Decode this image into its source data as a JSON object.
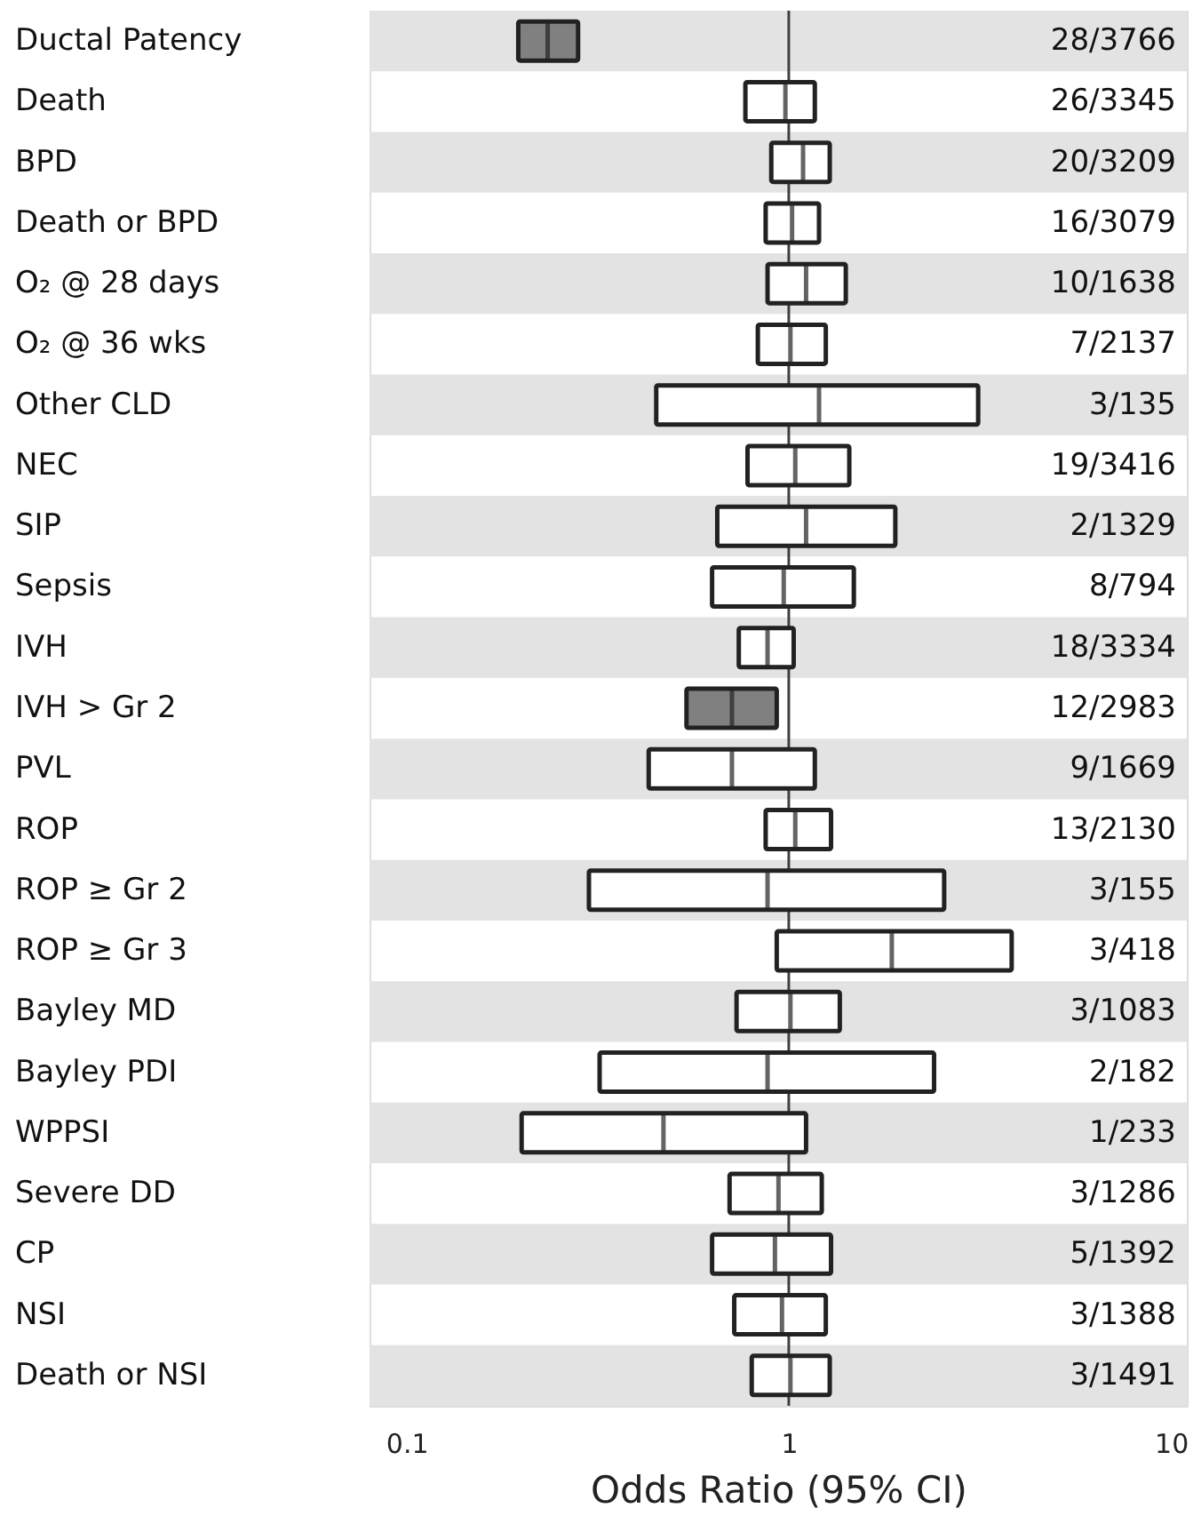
{
  "chart_data": {
    "type": "box",
    "orientation": "horizontal",
    "xlabel": "Odds Ratio (95% CI)",
    "log": "x",
    "xlim": [
      0.08,
      11
    ],
    "xticks": [
      0.1,
      1,
      10
    ],
    "grid": false,
    "categories": [
      "Ductal Patency",
      "Death",
      "BPD",
      "Death or BPD",
      "O₂ @ 28 days",
      "O₂ @ 36 wks",
      "Other CLD",
      "NEC",
      "SIP",
      "Sepsis",
      "IVH",
      "IVH > Gr 2",
      "PVL",
      "ROP",
      "ROP ≥ Gr 2",
      "ROP ≥ Gr 3",
      "Bayley MD",
      "Bayley PDI",
      "WPPSI",
      "Severe DD",
      "CP",
      "NSI",
      "Death or NSI"
    ],
    "boxes": [
      {
        "low": 0.196,
        "q1": 0.196,
        "median": 0.234,
        "q3": 0.281,
        "high": 0.281
      },
      {
        "low": 0.77,
        "q1": 0.77,
        "median": 0.98,
        "q3": 1.17,
        "high": 1.17
      },
      {
        "low": 0.9,
        "q1": 0.9,
        "median": 1.09,
        "q3": 1.28,
        "high": 1.28
      },
      {
        "low": 0.87,
        "q1": 0.87,
        "median": 1.02,
        "q3": 1.2,
        "high": 1.2
      },
      {
        "low": 0.88,
        "q1": 0.88,
        "median": 1.11,
        "q3": 1.41,
        "high": 1.41
      },
      {
        "low": 0.83,
        "q1": 0.83,
        "median": 1.01,
        "q3": 1.25,
        "high": 1.25
      },
      {
        "low": 0.45,
        "q1": 0.45,
        "median": 1.2,
        "q3": 3.13,
        "high": 3.13
      },
      {
        "low": 0.78,
        "q1": 0.78,
        "median": 1.04,
        "q3": 1.44,
        "high": 1.44
      },
      {
        "low": 0.65,
        "q1": 0.65,
        "median": 1.11,
        "q3": 1.9,
        "high": 1.9
      },
      {
        "low": 0.63,
        "q1": 0.63,
        "median": 0.97,
        "q3": 1.48,
        "high": 1.48
      },
      {
        "low": 0.74,
        "q1": 0.74,
        "median": 0.88,
        "q3": 1.03,
        "high": 1.03
      },
      {
        "low": 0.54,
        "q1": 0.54,
        "median": 0.71,
        "q3": 0.93,
        "high": 0.93
      },
      {
        "low": 0.43,
        "q1": 0.43,
        "median": 0.71,
        "q3": 1.17,
        "high": 1.17
      },
      {
        "low": 0.87,
        "q1": 0.87,
        "median": 1.04,
        "q3": 1.29,
        "high": 1.29
      },
      {
        "low": 0.3,
        "q1": 0.3,
        "median": 0.88,
        "q3": 2.55,
        "high": 2.55
      },
      {
        "low": 0.93,
        "q1": 0.93,
        "median": 1.86,
        "q3": 3.83,
        "high": 3.83
      },
      {
        "low": 0.73,
        "q1": 0.73,
        "median": 1.01,
        "q3": 1.36,
        "high": 1.36
      },
      {
        "low": 0.32,
        "q1": 0.32,
        "median": 0.88,
        "q3": 2.4,
        "high": 2.4
      },
      {
        "low": 0.2,
        "q1": 0.2,
        "median": 0.47,
        "q3": 1.11,
        "high": 1.11
      },
      {
        "low": 0.7,
        "q1": 0.7,
        "median": 0.94,
        "q3": 1.22,
        "high": 1.22
      },
      {
        "low": 0.63,
        "q1": 0.63,
        "median": 0.92,
        "q3": 1.29,
        "high": 1.29
      },
      {
        "low": 0.72,
        "q1": 0.72,
        "median": 0.96,
        "q3": 1.25,
        "high": 1.25
      },
      {
        "low": 0.8,
        "q1": 0.8,
        "median": 1.01,
        "q3": 1.28,
        "high": 1.28
      }
    ],
    "colors": [
      "#808080",
      "#ffffff",
      "#ffffff",
      "#ffffff",
      "#ffffff",
      "#ffffff",
      "#ffffff",
      "#ffffff",
      "#ffffff",
      "#ffffff",
      "#ffffff",
      "#808080",
      "#ffffff",
      "#ffffff",
      "#ffffff",
      "#ffffff",
      "#ffffff",
      "#ffffff",
      "#ffffff",
      "#ffffff",
      "#ffffff",
      "#ffffff",
      "#ffffff"
    ],
    "value_labels": [
      "28/3766",
      "26/3345",
      "20/3209",
      "16/3079",
      "10/1638",
      "7/2137",
      "3/135",
      "19/3416",
      "2/1329",
      "8/794",
      "18/3334",
      "12/2983",
      "9/1669",
      "13/2130",
      "3/155",
      "3/418",
      "3/1083",
      "2/182",
      "1/233",
      "3/1286",
      "5/1392",
      "3/1388",
      "3/1491"
    ],
    "ref_lines": [
      {
        "axis": "x",
        "value": 1,
        "color": "#404040"
      }
    ],
    "bands": [
      {
        "axis": "y",
        "from": "Ductal Patency",
        "to": "Ductal Patency",
        "color": "#e3e3e3"
      },
      {
        "axis": "y",
        "from": "BPD",
        "to": "BPD",
        "color": "#e3e3e3"
      },
      {
        "axis": "y",
        "from": "O₂ @ 28 days",
        "to": "O₂ @ 28 days",
        "color": "#e3e3e3"
      },
      {
        "axis": "y",
        "from": "Other CLD",
        "to": "Other CLD",
        "color": "#e3e3e3"
      },
      {
        "axis": "y",
        "from": "SIP",
        "to": "SIP",
        "color": "#e3e3e3"
      },
      {
        "axis": "y",
        "from": "IVH",
        "to": "IVH",
        "color": "#e3e3e3"
      },
      {
        "axis": "y",
        "from": "PVL",
        "to": "PVL",
        "color": "#e3e3e3"
      },
      {
        "axis": "y",
        "from": "ROP ≥ Gr 2",
        "to": "ROP ≥ Gr 2",
        "color": "#e3e3e3"
      },
      {
        "axis": "y",
        "from": "Bayley MD",
        "to": "Bayley MD",
        "color": "#e3e3e3"
      },
      {
        "axis": "y",
        "from": "WPPSI",
        "to": "WPPSI",
        "color": "#e3e3e3"
      },
      {
        "axis": "y",
        "from": "CP",
        "to": "CP",
        "color": "#e3e3e3"
      },
      {
        "axis": "y",
        "from": "Death or NSI",
        "to": "Death or NSI",
        "color": "#e3e3e3"
      }
    ]
  }
}
